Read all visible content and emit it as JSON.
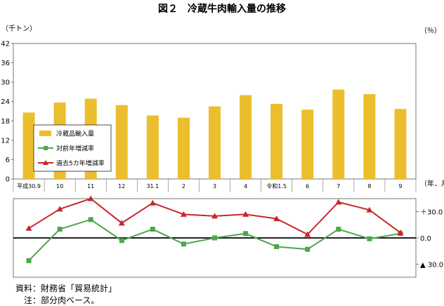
{
  "chart_data": [
    {
      "type": "bar",
      "title": "図２　冷蔵牛肉輸入量の推移",
      "ylabel": "（千トン）",
      "xlabel": "（年．月）",
      "ylim": [
        0,
        42
      ],
      "yticks": [
        0,
        6,
        12,
        18,
        24,
        30,
        36,
        42
      ],
      "grid": false,
      "legend_position": "left-middle",
      "categories": [
        "平成30.9",
        "10",
        "11",
        "12",
        "31.1",
        "2",
        "3",
        "4",
        "令和1.5",
        "6",
        "7",
        "8",
        "9"
      ],
      "series": [
        {
          "name": "冷蔵品輸入量",
          "color": "#EBBE2D",
          "values": [
            20.6,
            23.7,
            24.9,
            22.9,
            19.7,
            19.0,
            22.5,
            26.0,
            23.3,
            21.5,
            27.7,
            26.3,
            21.7
          ]
        }
      ]
    },
    {
      "type": "line",
      "ylabel": "（％）",
      "ylim": [
        -45,
        45
      ],
      "ytick_labels": [
        "＋30.0",
        "0.0",
        "▲ 30.0"
      ],
      "ytick_values": [
        30,
        0,
        -30
      ],
      "categories": [
        "平成30.9",
        "10",
        "11",
        "12",
        "31.1",
        "2",
        "3",
        "4",
        "令和1.5",
        "6",
        "7",
        "8",
        "9"
      ],
      "series": [
        {
          "name": "対前年増減率",
          "color": "#4EA64A",
          "marker": "square",
          "values": [
            -26,
            10,
            21,
            -3,
            10,
            -7,
            0,
            5,
            -10,
            -13,
            10,
            -1,
            5
          ]
        },
        {
          "name": "過去5カ年増減率",
          "color": "#C8262A",
          "marker": "triangle",
          "values": [
            11,
            33,
            45,
            17,
            40,
            27,
            25,
            27,
            22,
            4,
            41,
            32,
            6
          ]
        }
      ]
    }
  ],
  "source": "資料：財務省「貿易統計」",
  "note": "注：部分肉ベース。"
}
